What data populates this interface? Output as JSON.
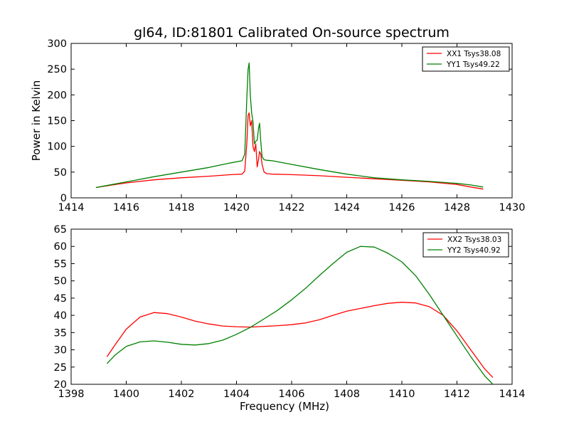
{
  "figure": {
    "title": "gl64, ID:81801 Calibrated On-source spectrum"
  },
  "chart_data": [
    {
      "type": "line",
      "title": "gl64, ID:81801 Calibrated On-source spectrum",
      "xlabel": "",
      "ylabel": "Power in Kelvin",
      "xlim": [
        1414,
        1430
      ],
      "ylim": [
        0,
        300
      ],
      "x_ticks": [
        1414,
        1416,
        1418,
        1420,
        1422,
        1424,
        1426,
        1428,
        1430
      ],
      "y_ticks": [
        0,
        50,
        100,
        150,
        200,
        250,
        300
      ],
      "grid": false,
      "legend": "top-right",
      "series": [
        {
          "name": "XX1 Tsys38.08",
          "color": "#ff0000",
          "x": [
            1414.9,
            1415.5,
            1416.0,
            1417.0,
            1418.0,
            1419.0,
            1419.8,
            1420.2,
            1420.3,
            1420.38,
            1420.42,
            1420.46,
            1420.5,
            1420.55,
            1420.6,
            1420.65,
            1420.7,
            1420.75,
            1420.8,
            1420.84,
            1420.88,
            1420.93,
            1421.0,
            1421.1,
            1421.3,
            1422.0,
            1423.0,
            1424.0,
            1425.0,
            1426.0,
            1427.0,
            1428.0,
            1428.5,
            1428.95
          ],
          "y": [
            20,
            25,
            29,
            35,
            39,
            42,
            45,
            46,
            52,
            110,
            160,
            165,
            140,
            150,
            100,
            90,
            105,
            60,
            75,
            90,
            85,
            65,
            50,
            47,
            46,
            45,
            43,
            40,
            37,
            34,
            31,
            26,
            21,
            17
          ]
        },
        {
          "name": "YY1 Tsys49.22",
          "color": "#008000",
          "x": [
            1414.9,
            1415.5,
            1416.0,
            1417.0,
            1418.0,
            1419.0,
            1419.8,
            1420.2,
            1420.3,
            1420.38,
            1420.42,
            1420.46,
            1420.5,
            1420.55,
            1420.6,
            1420.65,
            1420.7,
            1420.75,
            1420.8,
            1420.84,
            1420.88,
            1420.93,
            1421.0,
            1421.1,
            1421.3,
            1422.0,
            1423.0,
            1424.0,
            1425.0,
            1426.0,
            1427.0,
            1428.0,
            1428.5,
            1428.95
          ],
          "y": [
            20,
            26,
            31,
            41,
            50,
            59,
            68,
            72,
            85,
            200,
            250,
            262,
            200,
            165,
            148,
            105,
            110,
            112,
            135,
            145,
            110,
            80,
            74,
            73,
            72,
            65,
            55,
            46,
            39,
            35,
            32,
            28,
            25,
            21
          ]
        }
      ]
    },
    {
      "type": "line",
      "title": "",
      "xlabel": "Frequency (MHz)",
      "ylabel": "",
      "xlim": [
        1398,
        1414
      ],
      "ylim": [
        20,
        65
      ],
      "x_ticks": [
        1398,
        1400,
        1402,
        1404,
        1406,
        1408,
        1410,
        1412,
        1414
      ],
      "y_ticks": [
        20,
        25,
        30,
        35,
        40,
        45,
        50,
        55,
        60,
        65
      ],
      "grid": false,
      "legend": "top-right",
      "series": [
        {
          "name": "XX2 Tsys38.03",
          "color": "#ff0000",
          "x": [
            1399.3,
            1399.6,
            1400.0,
            1400.5,
            1401.0,
            1401.5,
            1402.0,
            1402.5,
            1403.0,
            1403.5,
            1404.0,
            1404.5,
            1405.0,
            1405.5,
            1406.0,
            1406.5,
            1407.0,
            1407.5,
            1408.0,
            1408.5,
            1409.0,
            1409.5,
            1410.0,
            1410.5,
            1411.0,
            1411.5,
            1412.0,
            1412.5,
            1413.0,
            1413.3
          ],
          "y": [
            28,
            31.5,
            36,
            39.5,
            40.8,
            40.5,
            39.5,
            38.3,
            37.5,
            36.9,
            36.7,
            36.6,
            36.8,
            37,
            37.3,
            37.8,
            38.7,
            40,
            41.2,
            42,
            42.8,
            43.5,
            43.8,
            43.6,
            42.5,
            40,
            35.5,
            30,
            24.5,
            22
          ]
        },
        {
          "name": "YY2 Tsys40.92",
          "color": "#008000",
          "x": [
            1399.3,
            1399.6,
            1400.0,
            1400.5,
            1401.0,
            1401.5,
            1402.0,
            1402.5,
            1403.0,
            1403.5,
            1404.0,
            1404.5,
            1405.0,
            1405.5,
            1406.0,
            1406.5,
            1407.0,
            1407.5,
            1408.0,
            1408.5,
            1409.0,
            1409.5,
            1410.0,
            1410.5,
            1411.0,
            1411.5,
            1412.0,
            1412.5,
            1413.0,
            1413.3
          ],
          "y": [
            26,
            28.5,
            31,
            32.3,
            32.6,
            32.2,
            31.6,
            31.4,
            31.8,
            32.8,
            34.5,
            36.5,
            39,
            41.5,
            44.5,
            47.8,
            51.5,
            55,
            58.3,
            60,
            59.8,
            58,
            55.5,
            51.5,
            46,
            40,
            34,
            28,
            22.5,
            20
          ]
        }
      ]
    }
  ]
}
